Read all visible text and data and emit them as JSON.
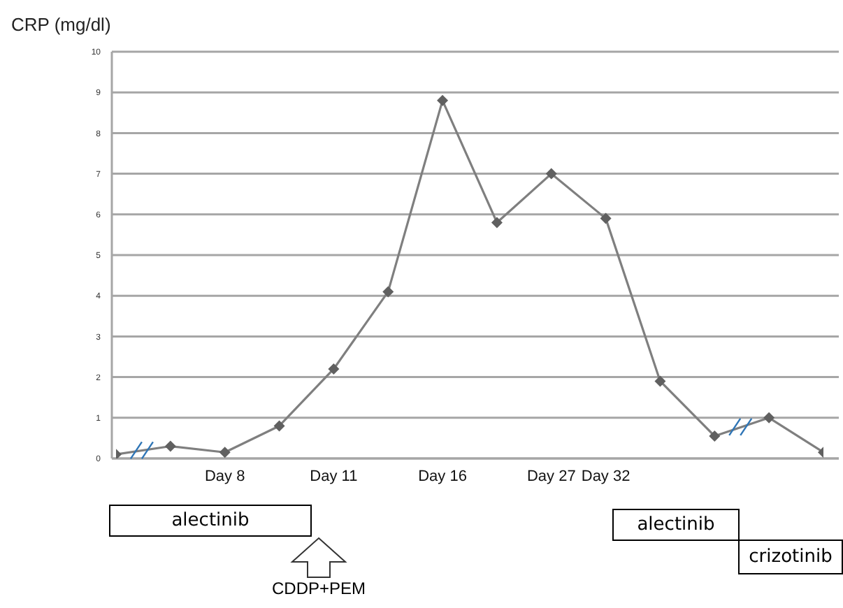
{
  "chart_data": {
    "type": "line",
    "ylabel": "CRP (mg/dl)",
    "categories": [
      null,
      null,
      "Day 8",
      null,
      "Day 11",
      null,
      "Day 16",
      null,
      "Day 27",
      "Day 32",
      null,
      null,
      null,
      null
    ],
    "series": [
      {
        "color": "#7f7f7f",
        "values": [
          0.1,
          0.3,
          0.15,
          0.8,
          2.2,
          4.1,
          8.8,
          5.8,
          7.0,
          5.9,
          1.9,
          0.55,
          1.0,
          0.15
        ]
      }
    ],
    "ylim": [
      0,
      10
    ],
    "yticks": [
      0,
      1,
      2,
      3,
      4,
      5,
      6,
      7,
      8,
      9,
      10
    ],
    "grid": "y",
    "legend": false,
    "marker": "diamond",
    "line_style": "solid",
    "annotations": [
      "alectinib",
      "CDDP+PEM",
      "alectinib",
      "crizotinib"
    ]
  }
}
